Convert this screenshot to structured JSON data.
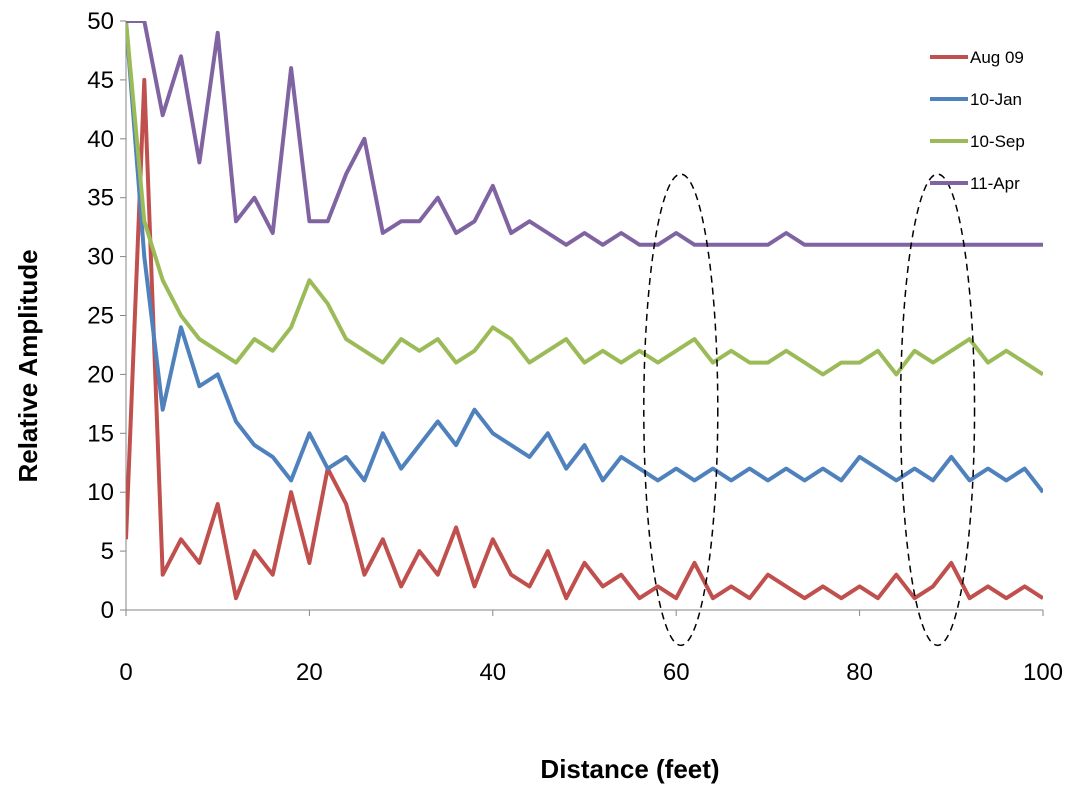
{
  "chart_data": {
    "type": "line",
    "xlabel": "Distance (feet)",
    "ylabel": "Relative Amplitude",
    "xlim": [
      0,
      100
    ],
    "ylim": [
      0,
      50
    ],
    "xticks": [
      0,
      20,
      40,
      60,
      80,
      100
    ],
    "yticks": [
      0,
      5,
      10,
      15,
      20,
      25,
      30,
      35,
      40,
      45,
      50
    ],
    "grid": false,
    "legend_position": "top-right",
    "x": [
      0,
      2,
      4,
      6,
      8,
      10,
      12,
      14,
      16,
      18,
      20,
      22,
      24,
      26,
      28,
      30,
      32,
      34,
      36,
      38,
      40,
      42,
      44,
      46,
      48,
      50,
      52,
      54,
      56,
      58,
      60,
      62,
      64,
      66,
      68,
      70,
      72,
      74,
      76,
      78,
      80,
      82,
      84,
      86,
      88,
      90,
      92,
      94,
      96,
      98,
      100
    ],
    "series": [
      {
        "name": "Aug 09",
        "color": "#c0504d",
        "values": [
          6,
          45,
          3,
          6,
          4,
          9,
          1,
          5,
          3,
          10,
          4,
          12,
          9,
          3,
          6,
          2,
          5,
          3,
          7,
          2,
          6,
          3,
          2,
          5,
          1,
          4,
          2,
          3,
          1,
          2,
          1,
          4,
          1,
          2,
          1,
          3,
          2,
          1,
          2,
          1,
          2,
          1,
          3,
          1,
          2,
          4,
          1,
          2,
          1,
          2,
          1
        ]
      },
      {
        "name": "10-Jan",
        "color": "#4f81bd",
        "values": [
          50,
          30,
          17,
          24,
          19,
          20,
          16,
          14,
          13,
          11,
          15,
          12,
          13,
          11,
          15,
          12,
          14,
          16,
          14,
          17,
          15,
          14,
          13,
          15,
          12,
          14,
          11,
          13,
          12,
          11,
          12,
          11,
          12,
          11,
          12,
          11,
          12,
          11,
          12,
          11,
          13,
          12,
          11,
          12,
          11,
          13,
          11,
          12,
          11,
          12,
          10
        ]
      },
      {
        "name": "10-Sep",
        "color": "#9bbb59",
        "values": [
          50,
          33,
          28,
          25,
          23,
          22,
          21,
          23,
          22,
          24,
          28,
          26,
          23,
          22,
          21,
          23,
          22,
          23,
          21,
          22,
          24,
          23,
          21,
          22,
          23,
          21,
          22,
          21,
          22,
          21,
          22,
          23,
          21,
          22,
          21,
          21,
          22,
          21,
          20,
          21,
          21,
          22,
          20,
          22,
          21,
          22,
          23,
          21,
          22,
          21,
          20
        ]
      },
      {
        "name": "11-Apr",
        "color": "#8064a2",
        "values": [
          50,
          50,
          42,
          47,
          38,
          49,
          33,
          35,
          32,
          46,
          33,
          33,
          37,
          40,
          32,
          33,
          33,
          35,
          32,
          33,
          36,
          32,
          33,
          32,
          31,
          32,
          31,
          32,
          31,
          31,
          32,
          31,
          31,
          31,
          31,
          31,
          32,
          31,
          31,
          31,
          31,
          31,
          31,
          31,
          31,
          31,
          31,
          31,
          31,
          31,
          31
        ]
      }
    ],
    "annotations": [
      {
        "shape": "dashed-ellipse",
        "x_center": 60.5,
        "y_range": [
          -3,
          37
        ]
      },
      {
        "shape": "dashed-ellipse",
        "x_center": 88.5,
        "y_range": [
          -3,
          37
        ]
      }
    ]
  }
}
